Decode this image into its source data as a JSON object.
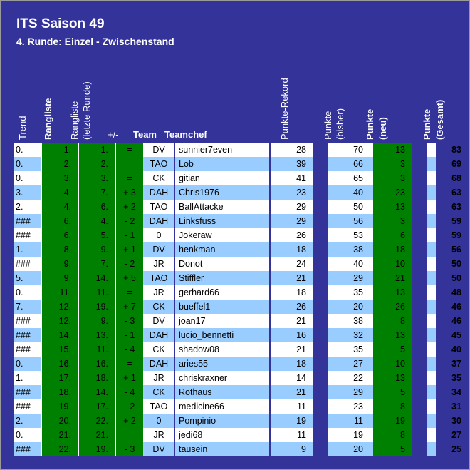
{
  "title": "ITS Saison 49",
  "subtitle": "4. Runde: Einzel - Zwischenstand",
  "headers": {
    "trend": "Trend",
    "rangliste": "Rangliste",
    "rangliste_letzte_1": "Rangliste",
    "rangliste_letzte_2": "(letzte Runde)",
    "diff": "+/-",
    "team": "Team",
    "teamchef": "Teamchef",
    "rekord": "Punkte-Rekord",
    "bisher_1": "Punkte",
    "bisher_2": "(bisher)",
    "neu_1": "Punkte",
    "neu_2": "(neu)",
    "gesamt_1": "Punkte",
    "gesamt_2": "(Gesamt)"
  },
  "colors": {
    "background": "#333399",
    "green": "#008000",
    "row_white": "#ffffff",
    "row_blue": "#99ccff"
  },
  "rows": [
    {
      "trend": "0.",
      "rank": "1.",
      "last": "1.",
      "diff": "=",
      "team": "DV",
      "chef": "sunnier7even",
      "rekord": "28",
      "bisher": "70",
      "neu": "13",
      "gesamt": "83"
    },
    {
      "trend": "0.",
      "rank": "2.",
      "last": "2.",
      "diff": "=",
      "team": "TAO",
      "chef": "Lob",
      "rekord": "39",
      "bisher": "66",
      "neu": "3",
      "gesamt": "69"
    },
    {
      "trend": "0.",
      "rank": "3.",
      "last": "3.",
      "diff": "=",
      "team": "CK",
      "chef": "gitian",
      "rekord": "41",
      "bisher": "65",
      "neu": "3",
      "gesamt": "68"
    },
    {
      "trend": "3.",
      "rank": "4.",
      "last": "7.",
      "diff": "+ 3",
      "team": "DAH",
      "chef": "Chris1976",
      "rekord": "23",
      "bisher": "40",
      "neu": "23",
      "gesamt": "63"
    },
    {
      "trend": "2.",
      "rank": "4.",
      "last": "6.",
      "diff": "+ 2",
      "team": "TAO",
      "chef": "BallAttacke",
      "rekord": "29",
      "bisher": "50",
      "neu": "13",
      "gesamt": "63"
    },
    {
      "trend": "###",
      "rank": "6.",
      "last": "4.",
      "diff": "- 2",
      "team": "DAH",
      "chef": "Linksfuss",
      "rekord": "29",
      "bisher": "56",
      "neu": "3",
      "gesamt": "59"
    },
    {
      "trend": "###",
      "rank": "6.",
      "last": "5.",
      "diff": "- 1",
      "team": "0",
      "chef": "Jokeraw",
      "rekord": "26",
      "bisher": "53",
      "neu": "6",
      "gesamt": "59"
    },
    {
      "trend": "1.",
      "rank": "8.",
      "last": "9.",
      "diff": "+ 1",
      "team": "DV",
      "chef": "henkman",
      "rekord": "18",
      "bisher": "38",
      "neu": "18",
      "gesamt": "56"
    },
    {
      "trend": "###",
      "rank": "9.",
      "last": "7.",
      "diff": "- 2",
      "team": "JR",
      "chef": "Donot",
      "rekord": "24",
      "bisher": "40",
      "neu": "10",
      "gesamt": "50"
    },
    {
      "trend": "5.",
      "rank": "9.",
      "last": "14.",
      "diff": "+ 5",
      "team": "TAO",
      "chef": "Stiffler",
      "rekord": "21",
      "bisher": "29",
      "neu": "21",
      "gesamt": "50"
    },
    {
      "trend": "0.",
      "rank": "11.",
      "last": "11.",
      "diff": "=",
      "team": "JR",
      "chef": "gerhard66",
      "rekord": "18",
      "bisher": "35",
      "neu": "13",
      "gesamt": "48"
    },
    {
      "trend": "7.",
      "rank": "12.",
      "last": "19.",
      "diff": "+ 7",
      "team": "CK",
      "chef": "bueffel1",
      "rekord": "26",
      "bisher": "20",
      "neu": "26",
      "gesamt": "46"
    },
    {
      "trend": "###",
      "rank": "12.",
      "last": "9.",
      "diff": "- 3",
      "team": "DV",
      "chef": "joan17",
      "rekord": "21",
      "bisher": "38",
      "neu": "8",
      "gesamt": "46"
    },
    {
      "trend": "###",
      "rank": "14.",
      "last": "13.",
      "diff": "- 1",
      "team": "DAH",
      "chef": "lucio_bennetti",
      "rekord": "16",
      "bisher": "32",
      "neu": "13",
      "gesamt": "45"
    },
    {
      "trend": "###",
      "rank": "15.",
      "last": "11.",
      "diff": "- 4",
      "team": "CK",
      "chef": "shadow08",
      "rekord": "21",
      "bisher": "35",
      "neu": "5",
      "gesamt": "40"
    },
    {
      "trend": "0.",
      "rank": "16.",
      "last": "16.",
      "diff": "=",
      "team": "DAH",
      "chef": "aries55",
      "rekord": "18",
      "bisher": "27",
      "neu": "10",
      "gesamt": "37"
    },
    {
      "trend": "1.",
      "rank": "17.",
      "last": "18.",
      "diff": "+ 1",
      "team": "JR",
      "chef": "chriskraxner",
      "rekord": "14",
      "bisher": "22",
      "neu": "13",
      "gesamt": "35"
    },
    {
      "trend": "###",
      "rank": "18.",
      "last": "14.",
      "diff": "- 4",
      "team": "CK",
      "chef": "Rothaus",
      "rekord": "21",
      "bisher": "29",
      "neu": "5",
      "gesamt": "34"
    },
    {
      "trend": "###",
      "rank": "19.",
      "last": "17.",
      "diff": "- 2",
      "team": "TAO",
      "chef": "medicine66",
      "rekord": "11",
      "bisher": "23",
      "neu": "8",
      "gesamt": "31"
    },
    {
      "trend": "2.",
      "rank": "20.",
      "last": "22.",
      "diff": "+ 2",
      "team": "0",
      "chef": "Pompinio",
      "rekord": "19",
      "bisher": "11",
      "neu": "19",
      "gesamt": "30"
    },
    {
      "trend": "0.",
      "rank": "21.",
      "last": "21.",
      "diff": "=",
      "team": "JR",
      "chef": "jedi68",
      "rekord": "11",
      "bisher": "19",
      "neu": "8",
      "gesamt": "27"
    },
    {
      "trend": "###",
      "rank": "22.",
      "last": "19.",
      "diff": "- 3",
      "team": "DV",
      "chef": "tausein",
      "rekord": "9",
      "bisher": "20",
      "neu": "5",
      "gesamt": "25"
    }
  ]
}
